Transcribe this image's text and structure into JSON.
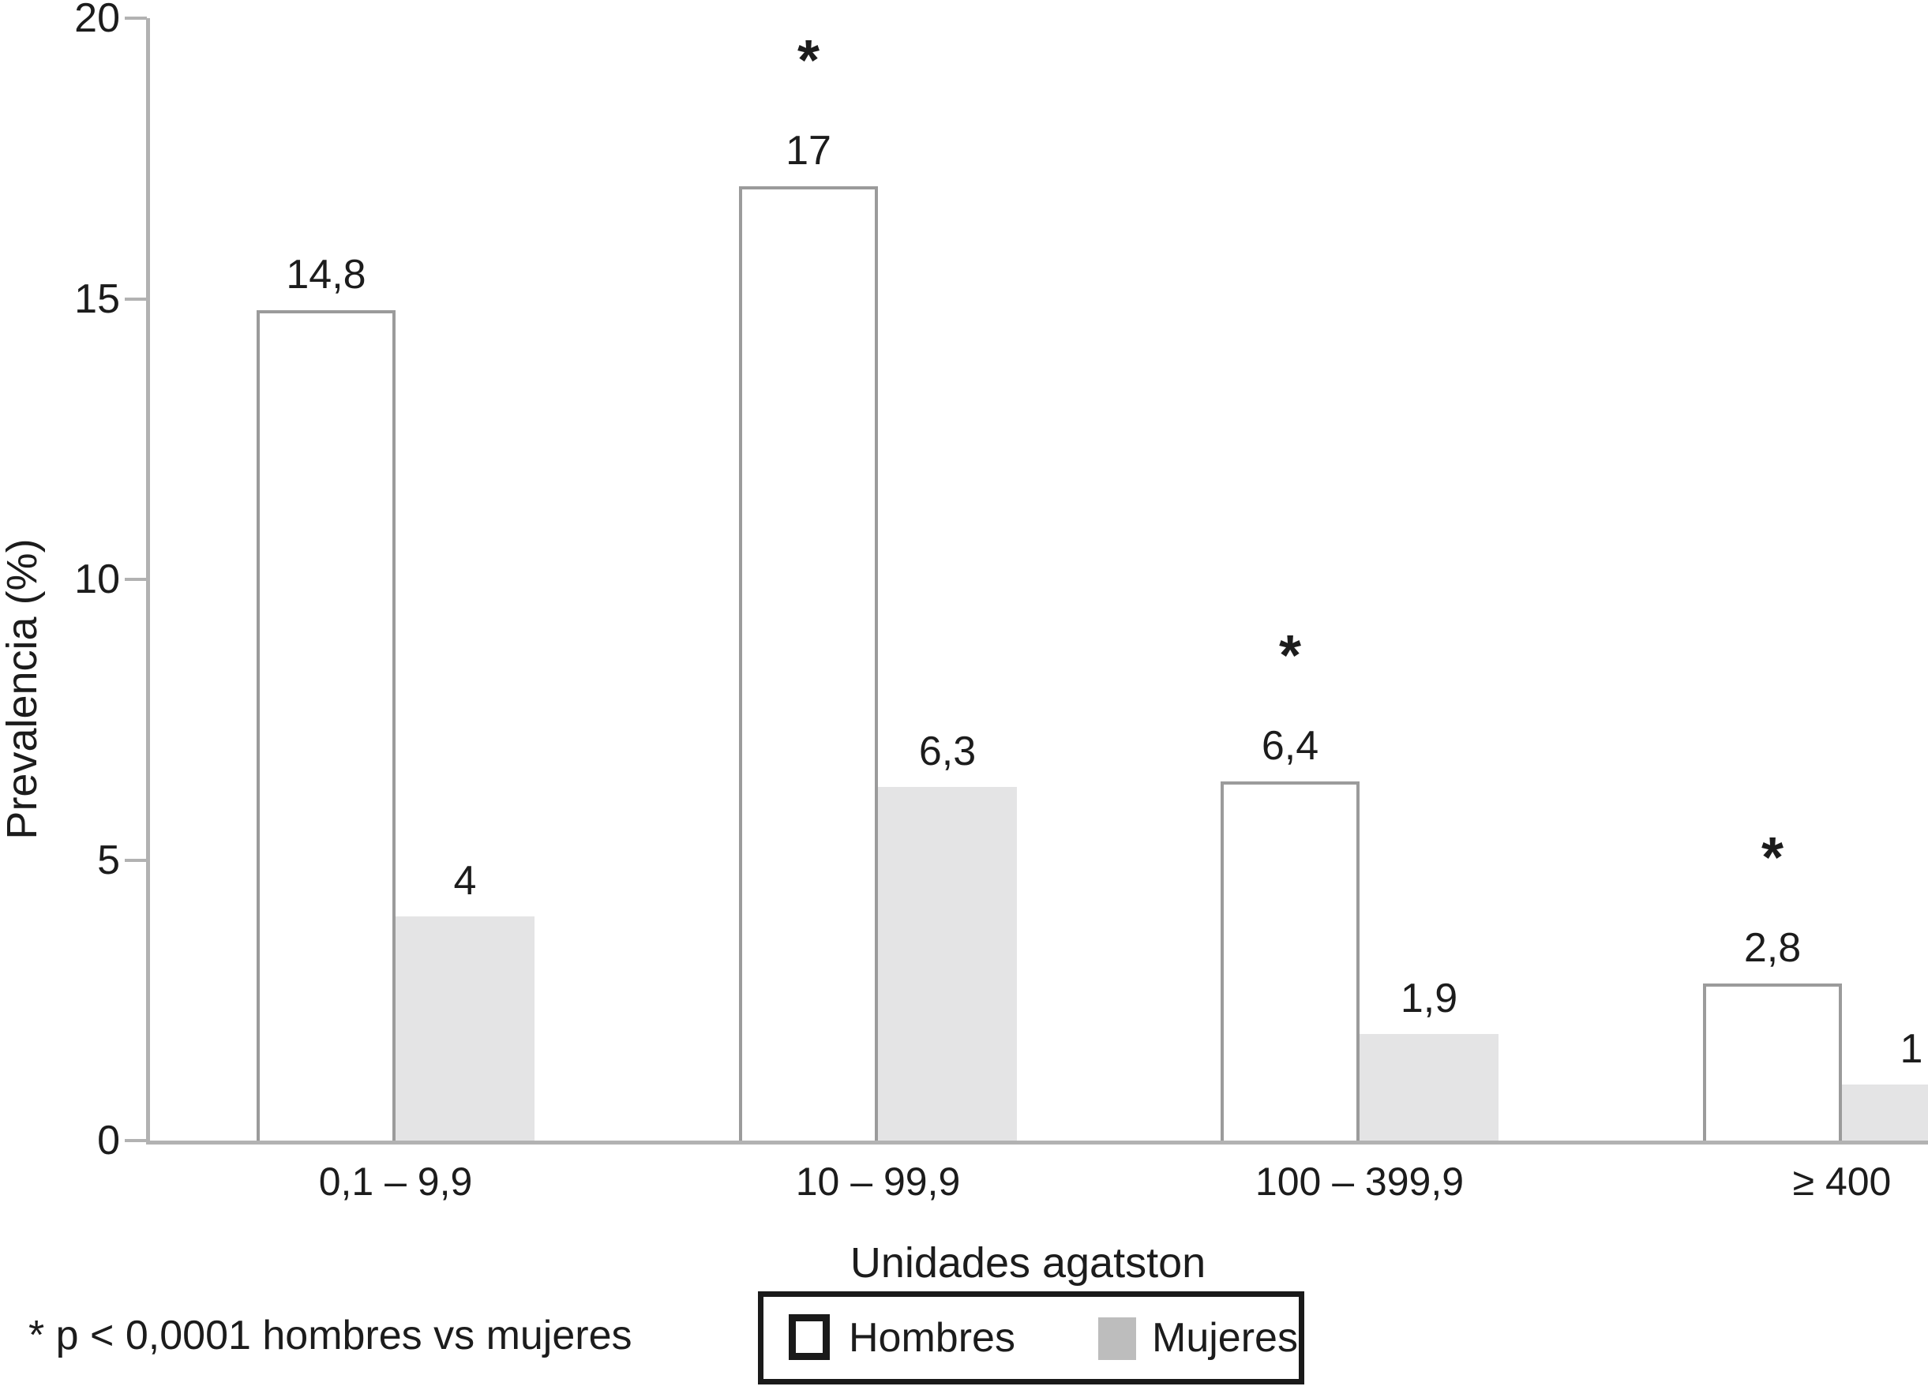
{
  "chart_data": {
    "type": "bar",
    "title": "",
    "xlabel": "Unidades agatston",
    "ylabel": "Prevalencia (%)",
    "ylim": [
      0,
      20
    ],
    "yticks": [
      {
        "value": 0,
        "label": "0"
      },
      {
        "value": 5,
        "label": "5"
      },
      {
        "value": 10,
        "label": "10"
      },
      {
        "value": 15,
        "label": "15"
      },
      {
        "value": 20,
        "label": "20"
      }
    ],
    "grid": false,
    "legend_position": "bottom-center",
    "categories": [
      "0,1 – 9,9",
      "10 – 99,9",
      "100 – 399,9",
      "≥ 400"
    ],
    "series": [
      {
        "name": "Hombres",
        "style": "outline-white",
        "values": [
          14.8,
          17,
          6.4,
          2.8
        ],
        "value_labels": [
          "14,8",
          "17",
          "6,4",
          "2,8"
        ]
      },
      {
        "name": "Mujeres",
        "style": "solid-gray",
        "values": [
          4,
          6.3,
          1.9,
          1
        ],
        "value_labels": [
          "4",
          "6,3",
          "1,9",
          "1"
        ]
      }
    ],
    "significance": {
      "marker": "*",
      "significant_groups": [
        false,
        true,
        true,
        true
      ],
      "footnote": "* p < 0,0001 hombres vs mujeres"
    }
  },
  "legend": {
    "items": [
      {
        "label": "Hombres",
        "swatch": "outline"
      },
      {
        "label": "Mujeres",
        "swatch": "solid"
      }
    ]
  },
  "colors": {
    "background": "#ffffff",
    "axis": "#b2b2b2",
    "bar_outline": "#9b9b9b",
    "mujeres_fill": "#e4e4e5",
    "legend_mujeres_fill": "#bdbdbd",
    "legend_border": "#1a1a1a",
    "text": "#1c1c1c"
  }
}
